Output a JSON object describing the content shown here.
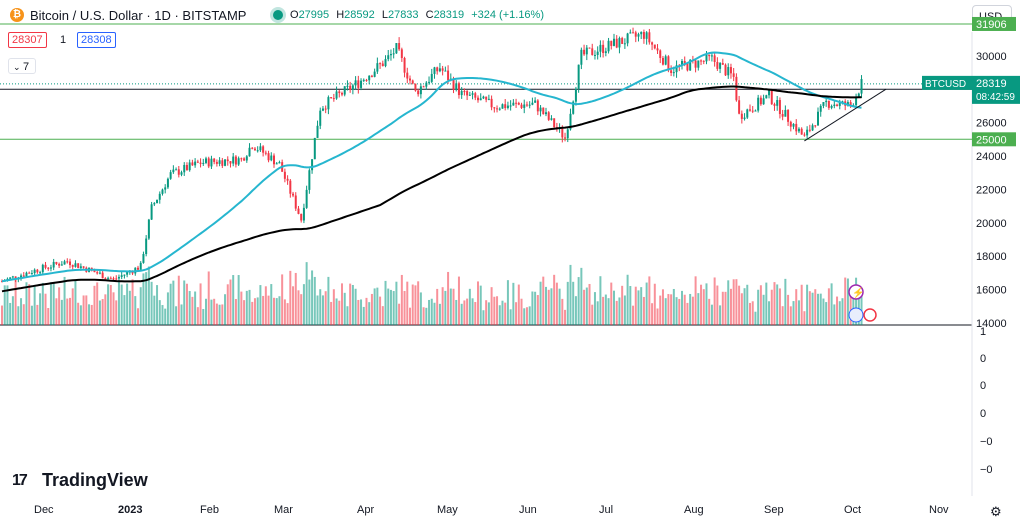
{
  "header": {
    "symbol_icon": "bitcoin-icon",
    "title": "Bitcoin / U.S. Dollar · 1D · BITSTAMP",
    "ohlc": [
      {
        "label": "O",
        "value": "27995"
      },
      {
        "label": "H",
        "value": "28592"
      },
      {
        "label": "L",
        "value": "27833"
      },
      {
        "label": "C",
        "value": "28319"
      },
      {
        "label": "",
        "value": "+324 (+1.16%)"
      }
    ],
    "currency": "USD"
  },
  "quote": {
    "bid": "28307",
    "spread": "1",
    "ask": "28308"
  },
  "indicators_toggle": "7",
  "branding": {
    "logo_text": "TradingView"
  },
  "price_badges": {
    "symbol": "BTCUSD",
    "last": "28319",
    "countdown": "08:42:59",
    "line_31906": "31906",
    "line_28000": "28000",
    "line_25000": "25000"
  },
  "colors": {
    "up": "#089981",
    "down": "#f23645",
    "ma_short": "#26b6cf",
    "ma_long": "#000000",
    "hline": "#4caf50",
    "accent": "#2962ff"
  },
  "chart_data": {
    "type": "candlestick",
    "title": "Bitcoin / U.S. Dollar · 1D · BITSTAMP",
    "price_axis": {
      "ticks": [
        14000,
        16000,
        18000,
        20000,
        22000,
        24000,
        26000,
        28000,
        30000
      ],
      "range": [
        14000,
        32500
      ]
    },
    "volume_axis": {
      "ticks": [
        "1",
        "0",
        "0",
        "0",
        "0",
        "0",
        "−0",
        "−0"
      ]
    },
    "time_axis": {
      "ticks": [
        "Dec",
        "2023",
        "Feb",
        "Mar",
        "Apr",
        "May",
        "Jun",
        "Jul",
        "Aug",
        "Sep",
        "Oct",
        "Nov"
      ]
    },
    "horizontal_lines": [
      31906,
      28000,
      25000
    ],
    "series": [
      {
        "kind": "ohlc_daily",
        "anchors": [
          [
            "2022-11-20",
            16500
          ],
          [
            "2022-12-01",
            17100
          ],
          [
            "2022-12-14",
            17700
          ],
          [
            "2022-12-31",
            16600
          ],
          [
            "2023-01-10",
            17400
          ],
          [
            "2023-01-14",
            20900
          ],
          [
            "2023-01-21",
            22900
          ],
          [
            "2023-02-01",
            23600
          ],
          [
            "2023-02-16",
            23800
          ],
          [
            "2023-02-20",
            24700
          ],
          [
            "2023-03-02",
            23500
          ],
          [
            "2023-03-10",
            20200
          ],
          [
            "2023-03-17",
            26900
          ],
          [
            "2023-03-31",
            28400
          ],
          [
            "2023-04-10",
            29700
          ],
          [
            "2023-04-14",
            30400
          ],
          [
            "2023-04-21",
            27800
          ],
          [
            "2023-04-30",
            29300
          ],
          [
            "2023-05-08",
            27700
          ],
          [
            "2023-05-20",
            27000
          ],
          [
            "2023-06-04",
            27100
          ],
          [
            "2023-06-15",
            25100
          ],
          [
            "2023-06-21",
            30000
          ],
          [
            "2023-07-01",
            30600
          ],
          [
            "2023-07-14",
            31300
          ],
          [
            "2023-07-24",
            29200
          ],
          [
            "2023-08-08",
            29800
          ],
          [
            "2023-08-16",
            28700
          ],
          [
            "2023-08-18",
            26400
          ],
          [
            "2023-08-29",
            27600
          ],
          [
            "2023-09-11",
            25100
          ],
          [
            "2023-09-19",
            27200
          ],
          [
            "2023-09-28",
            27000
          ],
          [
            "2023-10-02",
            28319
          ]
        ]
      },
      {
        "kind": "moving_average_short",
        "color": "#26b6cf"
      },
      {
        "kind": "moving_average_long",
        "color": "#000000"
      },
      {
        "kind": "trendline",
        "from": [
          "2023-09-11",
          24900
        ],
        "to": [
          "2023-10-11",
          28000
        ]
      }
    ]
  }
}
